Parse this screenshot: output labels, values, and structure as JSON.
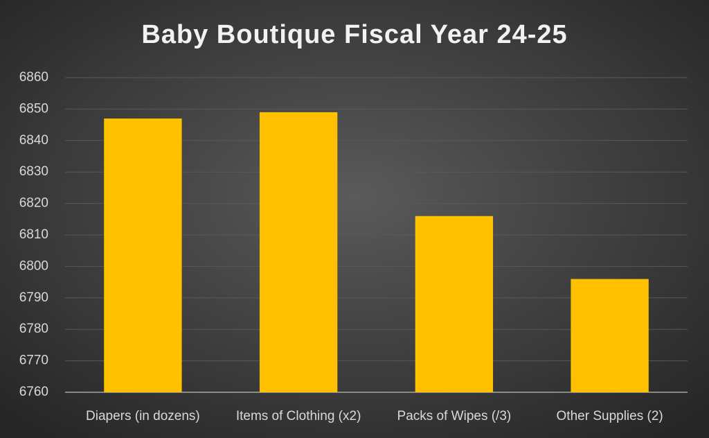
{
  "chart_data": {
    "type": "bar",
    "title": "Baby Boutique Fiscal Year 24-25",
    "categories": [
      "Diapers (in dozens)",
      "Items of Clothing (x2)",
      "Packs of Wipes (/3)",
      "Other Supplies (2)"
    ],
    "values": [
      6847,
      6849,
      6816,
      6796
    ],
    "color": "#ffc000",
    "ylim": [
      6760,
      6860
    ],
    "yticks": [
      6760,
      6770,
      6780,
      6790,
      6800,
      6810,
      6820,
      6830,
      6840,
      6850,
      6860
    ],
    "grid": true
  }
}
